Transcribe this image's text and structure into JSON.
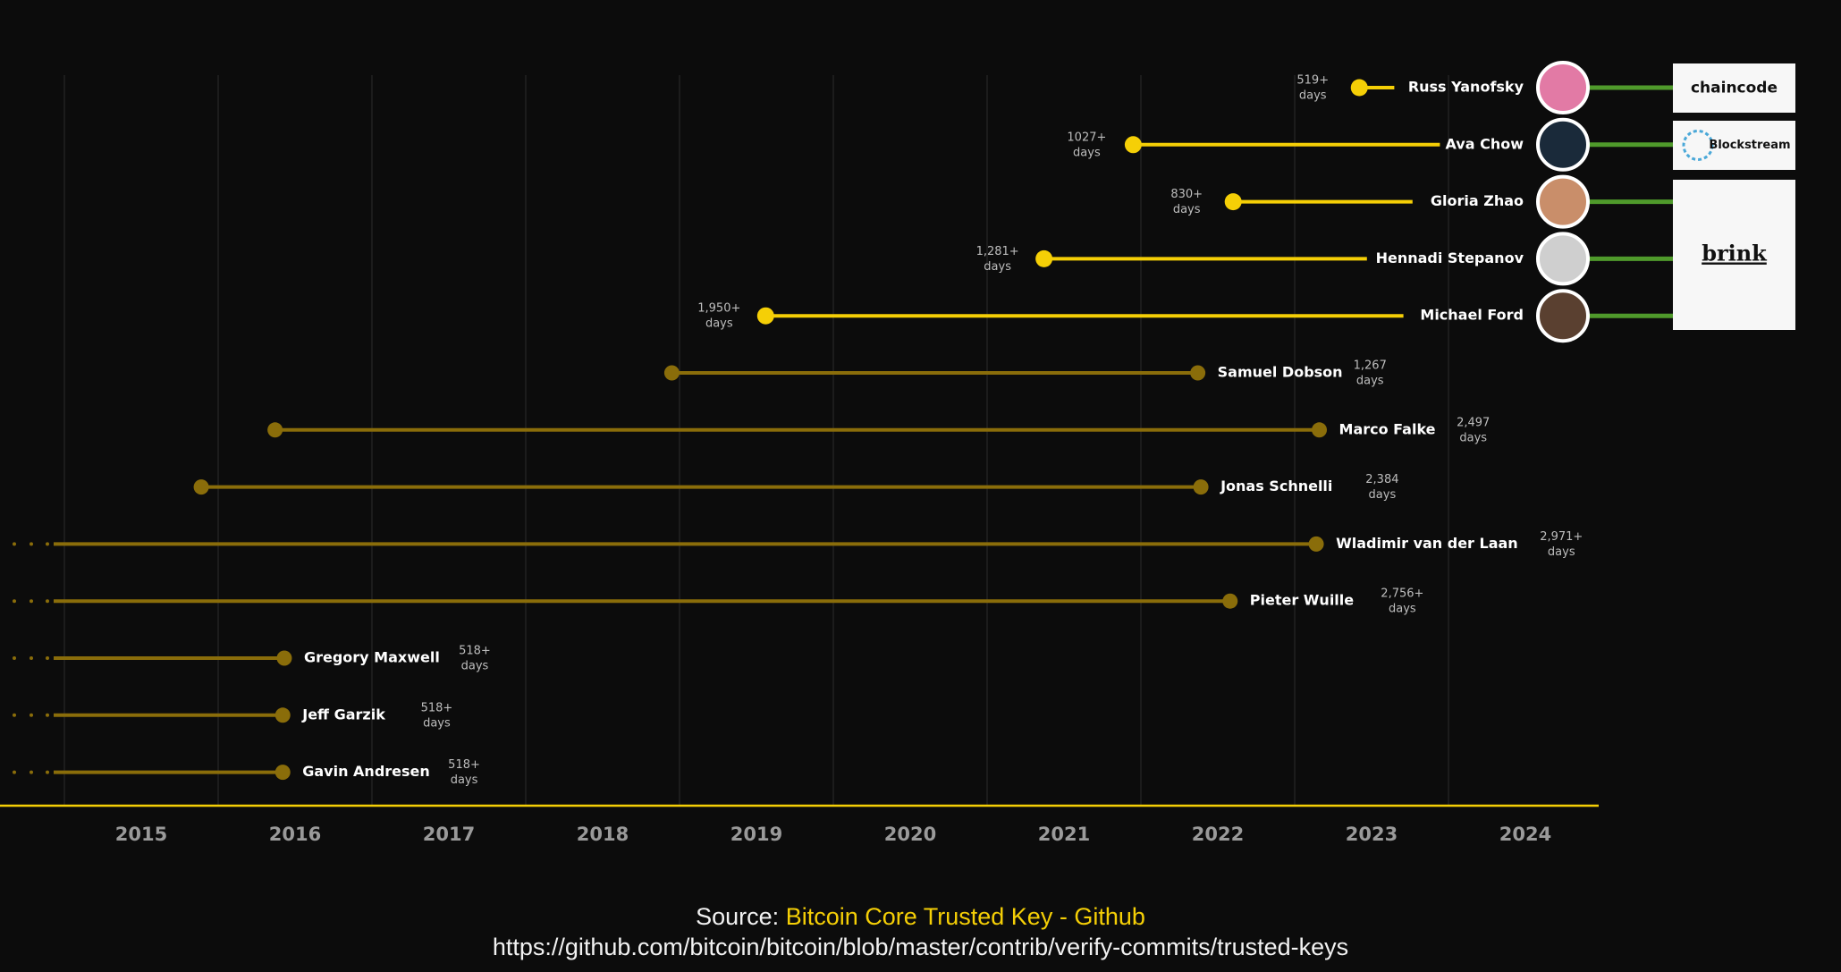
{
  "chart_data": {
    "type": "timeline",
    "x_axis": {
      "ticks": [
        "2015",
        "2016",
        "2017",
        "2018",
        "2019",
        "2020",
        "2021",
        "2022",
        "2023",
        "2024"
      ],
      "range": [
        2015,
        2025
      ],
      "grid": true
    },
    "colors": {
      "current": "#f5cf06",
      "former": "#8a6d0a",
      "affiliation": "#4f9a2b",
      "grid": "#262626"
    },
    "rows": [
      {
        "name": "Russ Yanofsky",
        "start": 2023.42,
        "end": null,
        "days": "519+ days",
        "current": true,
        "avatar_color": "#e27aa5"
      },
      {
        "name": "Ava Chow",
        "start": 2021.95,
        "end": null,
        "days": "1027+ days",
        "current": true,
        "avatar_color": "#1a2a3a"
      },
      {
        "name": "Gloria Zhao",
        "start": 2022.6,
        "end": null,
        "days": "830+ days",
        "current": true,
        "avatar_color": "#c98e6a"
      },
      {
        "name": "Hennadi Stepanov",
        "start": 2021.37,
        "end": null,
        "days": "1,281+ days",
        "current": true,
        "avatar_color": "#cfcfcf"
      },
      {
        "name": "Michael Ford",
        "start": 2019.56,
        "end": null,
        "days": "1,950+ days",
        "current": true,
        "avatar_color": "#5a4030"
      },
      {
        "name": "Samuel Dobson",
        "start": 2018.95,
        "end": 2022.37,
        "days": "1,267 days",
        "current": false
      },
      {
        "name": "Marco Falke",
        "start": 2016.37,
        "end": 2023.16,
        "days": "2,497 days",
        "current": false
      },
      {
        "name": "Jonas Schnelli",
        "start": 2015.89,
        "end": 2022.39,
        "days": "2,384 days",
        "current": false
      },
      {
        "name": "Wladimir van der Laan",
        "start": null,
        "end": 2023.14,
        "days": "2,971+ days",
        "current": false
      },
      {
        "name": "Pieter Wuille",
        "start": null,
        "end": 2022.58,
        "days": "2,756+ days",
        "current": false
      },
      {
        "name": "Gregory Maxwell",
        "start": null,
        "end": 2016.43,
        "days": "518+ days",
        "current": false
      },
      {
        "name": "Jeff Garzik",
        "start": null,
        "end": 2016.42,
        "days": "518+ days",
        "current": false
      },
      {
        "name": "Gavin Andresen",
        "start": null,
        "end": 2016.42,
        "days": "518+ days",
        "current": false
      }
    ],
    "affiliations": [
      {
        "label": "chaincode",
        "members": [
          "Russ Yanofsky"
        ]
      },
      {
        "label": "Blockstream",
        "members": [
          "Ava Chow"
        ]
      },
      {
        "label": "brink",
        "members": [
          "Gloria Zhao",
          "Hennadi Stepanov",
          "Michael Ford"
        ]
      }
    ]
  },
  "source": {
    "prefix": "Source: ",
    "title": "Bitcoin Core Trusted Key - Github",
    "url": "https://github.com/bitcoin/bitcoin/blob/master/contrib/verify-commits/trusted-keys"
  }
}
